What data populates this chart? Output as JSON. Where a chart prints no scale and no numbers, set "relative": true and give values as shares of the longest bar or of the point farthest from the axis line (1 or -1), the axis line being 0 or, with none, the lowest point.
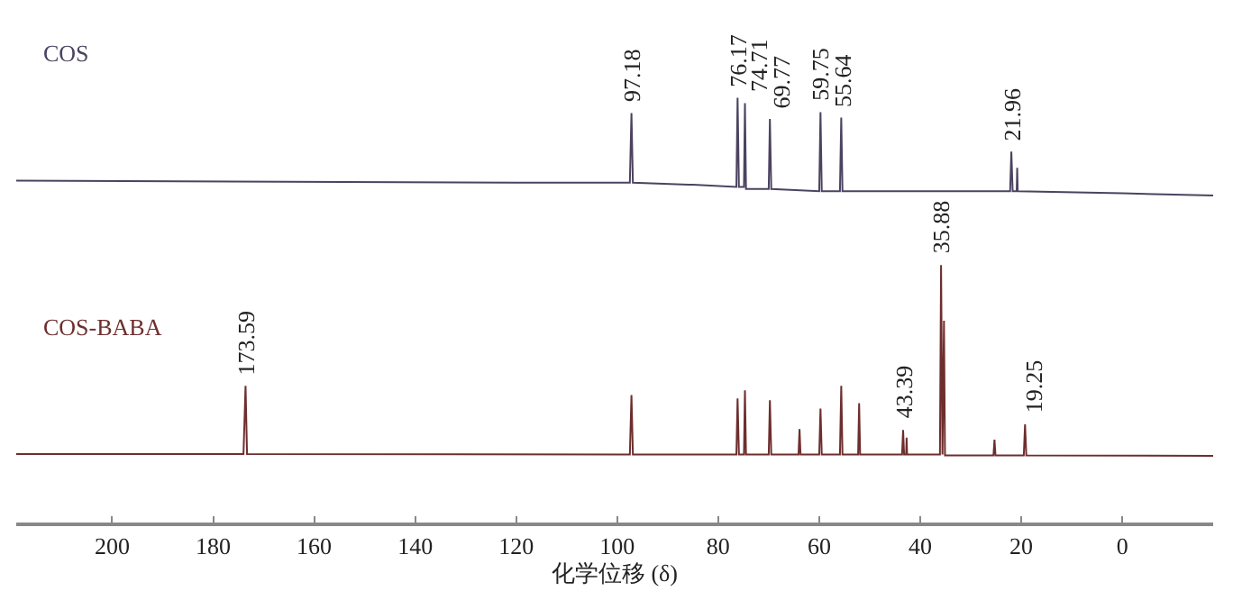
{
  "chart_data": {
    "type": "line",
    "relative": true,
    "xlabel": "化学位移 (δ)",
    "xlim": [
      219,
      -18
    ],
    "xticks": [
      200,
      180,
      160,
      140,
      120,
      100,
      80,
      60,
      40,
      20,
      0
    ],
    "legend": false,
    "marker": "none",
    "line_style": "solid",
    "series": [
      {
        "name": "COS",
        "color": "#4b4360",
        "x": [
          219,
          120,
          97.5,
          97.18,
          96.9,
          85,
          76.4,
          76.17,
          75.9,
          74.9,
          74.71,
          74.5,
          70,
          69.77,
          69.5,
          60,
          59.75,
          59.5,
          55.9,
          55.64,
          55.4,
          40,
          22.2,
          21.96,
          21.7,
          20.9,
          20.8,
          20.7,
          0,
          -18
        ],
        "values": [
          0.805,
          0.8,
          0.8,
          0.964,
          0.8,
          0.795,
          0.79,
          1.0,
          0.79,
          0.79,
          0.987,
          0.785,
          0.785,
          0.95,
          0.785,
          0.78,
          0.966,
          0.78,
          0.78,
          0.953,
          0.78,
          0.78,
          0.78,
          0.873,
          0.78,
          0.78,
          0.835,
          0.78,
          0.775,
          0.77
        ]
      },
      {
        "name": "COS-BABA",
        "color": "#6e2e2e",
        "x": [
          219,
          174,
          173.59,
          173.3,
          97.5,
          97.18,
          96.9,
          76.4,
          76.17,
          75.9,
          74.9,
          74.71,
          74.5,
          70,
          69.77,
          69.5,
          64.1,
          63.9,
          63.7,
          60,
          59.75,
          59.5,
          55.9,
          55.64,
          55.4,
          52.3,
          52.1,
          51.9,
          43.6,
          43.39,
          43.2,
          42.8,
          42.7,
          42.6,
          36.1,
          35.88,
          35.6,
          35.3,
          35.1,
          25.5,
          25.3,
          25.1,
          19.5,
          19.25,
          19.0,
          -18
        ],
        "values": [
          0.161,
          0.161,
          0.322,
          0.161,
          0.16,
          0.3,
          0.16,
          0.16,
          0.292,
          0.16,
          0.16,
          0.311,
          0.16,
          0.16,
          0.288,
          0.16,
          0.16,
          0.22,
          0.16,
          0.16,
          0.268,
          0.16,
          0.16,
          0.322,
          0.16,
          0.16,
          0.281,
          0.16,
          0.16,
          0.218,
          0.16,
          0.16,
          0.2,
          0.16,
          0.16,
          0.606,
          0.16,
          0.475,
          0.158,
          0.158,
          0.195,
          0.158,
          0.158,
          0.231,
          0.158,
          0.157
        ]
      }
    ],
    "annotations": [
      {
        "text": "97.18",
        "x": 97.18,
        "y": 0.964
      },
      {
        "text": "76.17",
        "x": 76.17,
        "y": 1.0
      },
      {
        "text": "74.71",
        "x": 74.71,
        "y": 0.987
      },
      {
        "text": "69.77",
        "x": 69.77,
        "y": 0.95
      },
      {
        "text": "59.75",
        "x": 59.75,
        "y": 0.966
      },
      {
        "text": "55.64",
        "x": 55.64,
        "y": 0.953
      },
      {
        "text": "21.96",
        "x": 21.96,
        "y": 0.873
      },
      {
        "text": "173.59",
        "x": 173.59,
        "y": 0.322
      },
      {
        "text": "43.39",
        "x": 43.39,
        "y": 0.218
      },
      {
        "text": "35.88",
        "x": 35.88,
        "y": 0.606
      },
      {
        "text": "19.25",
        "x": 19.25,
        "y": 0.231
      }
    ]
  }
}
